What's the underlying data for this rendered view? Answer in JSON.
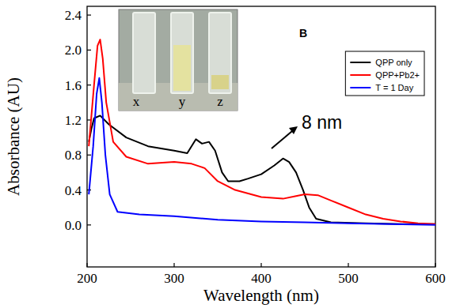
{
  "chart_data": {
    "type": "line",
    "panel_label": "B",
    "x_label": "Wavelength (nm)",
    "y_label": "Absorbance (AU)",
    "xlim": [
      200,
      600
    ],
    "xticks": [
      200,
      300,
      400,
      500,
      600
    ],
    "ylim": [
      -0.48,
      2.5
    ],
    "yticks": [
      {
        "value": 0,
        "label": "0.0"
      },
      0.4,
      0.8,
      1.2,
      1.6,
      {
        "value": 2,
        "label": "2.0"
      },
      2.4
    ],
    "grid": false,
    "legend": "upper right",
    "annotation": "8 nm",
    "inset": {
      "labels": [
        "x",
        "y",
        "z"
      ]
    },
    "series": [
      {
        "name": "QPP only",
        "color": "#000000",
        "x": [
          202,
          205,
          208,
          215,
          225,
          245,
          270,
          300,
          315,
          325,
          332,
          340,
          347,
          355,
          362,
          375,
          385,
          400,
          415,
          425,
          432,
          440,
          448,
          455,
          463,
          480,
          520,
          560,
          600
        ],
        "values": [
          0.95,
          1.1,
          1.22,
          1.25,
          1.15,
          1.0,
          0.9,
          0.85,
          0.82,
          0.98,
          0.93,
          0.95,
          0.85,
          0.6,
          0.5,
          0.5,
          0.53,
          0.58,
          0.68,
          0.76,
          0.72,
          0.6,
          0.4,
          0.2,
          0.07,
          0.03,
          0.02,
          0.01,
          0.01
        ]
      },
      {
        "name": "QPP+Pb2+",
        "color": "#ff0000",
        "x": [
          202,
          208,
          212,
          215,
          218,
          222,
          230,
          245,
          270,
          300,
          320,
          335,
          350,
          370,
          400,
          425,
          440,
          450,
          465,
          480,
          500,
          520,
          540,
          560,
          580,
          600
        ],
        "values": [
          0.9,
          1.6,
          2.05,
          2.12,
          1.9,
          1.4,
          0.95,
          0.78,
          0.7,
          0.72,
          0.7,
          0.65,
          0.5,
          0.4,
          0.32,
          0.3,
          0.33,
          0.35,
          0.34,
          0.28,
          0.2,
          0.12,
          0.07,
          0.04,
          0.02,
          0.01
        ]
      },
      {
        "name": "T = 1 Day",
        "color": "#0000ff",
        "x": [
          202,
          207,
          211,
          214,
          217,
          221,
          226,
          235,
          260,
          300,
          350,
          400,
          450,
          500,
          550,
          600
        ],
        "values": [
          0.35,
          0.9,
          1.5,
          1.68,
          1.4,
          0.8,
          0.35,
          0.15,
          0.12,
          0.1,
          0.06,
          0.04,
          0.03,
          0.02,
          0.01,
          0.0
        ]
      }
    ]
  }
}
